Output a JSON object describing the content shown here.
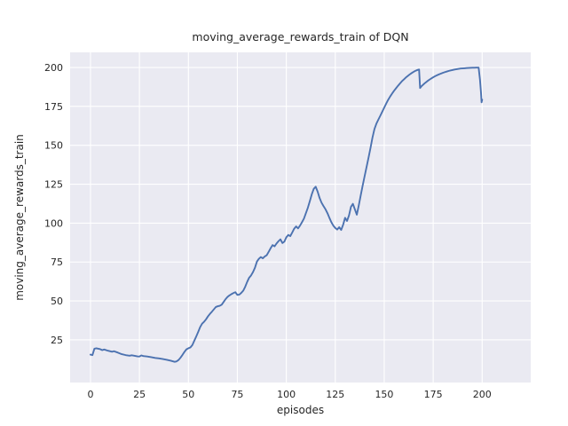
{
  "figure": {
    "background": "#ffffff"
  },
  "chart_data": {
    "type": "line",
    "title": "moving_average_rewards_train of DQN",
    "xlabel": "episodes",
    "ylabel": "moving_average_rewards_train",
    "legend": "none",
    "grid": true,
    "style": "seaborn-darkgrid",
    "axes_bg_color": "#EAEAF2",
    "grid_color": "#FFFFFF",
    "line_color": "#4C72B0",
    "text_color": "#262626",
    "x_ticks": [
      0,
      25,
      50,
      75,
      100,
      125,
      150,
      175,
      200
    ],
    "y_ticks": [
      25,
      50,
      75,
      100,
      125,
      150,
      175,
      200
    ],
    "xlim": [
      -10.4,
      224.8
    ],
    "ylim": [
      -2.4,
      209.7
    ],
    "series": [
      {
        "name": "moving_average_rewards_train",
        "points": [
          [
            0,
            15.5
          ],
          [
            1,
            15.2
          ],
          [
            2,
            19.3
          ],
          [
            3,
            19.6
          ],
          [
            5,
            19.0
          ],
          [
            6,
            18.4
          ],
          [
            7,
            18.8
          ],
          [
            9,
            18.0
          ],
          [
            11,
            17.4
          ],
          [
            12,
            17.7
          ],
          [
            14,
            16.8
          ],
          [
            16,
            15.8
          ],
          [
            18,
            15.2
          ],
          [
            20,
            14.8
          ],
          [
            21,
            15.1
          ],
          [
            22,
            14.9
          ],
          [
            24,
            14.4
          ],
          [
            25,
            14.3
          ],
          [
            26,
            15.0
          ],
          [
            27,
            14.6
          ],
          [
            29,
            14.3
          ],
          [
            31,
            13.9
          ],
          [
            33,
            13.4
          ],
          [
            35,
            13.1
          ],
          [
            37,
            12.7
          ],
          [
            39,
            12.2
          ],
          [
            41,
            11.6
          ],
          [
            43,
            10.9
          ],
          [
            44,
            11.2
          ],
          [
            45,
            12.1
          ],
          [
            46,
            13.6
          ],
          [
            47,
            15.4
          ],
          [
            48,
            17.3
          ],
          [
            49,
            18.9
          ],
          [
            50,
            19.6
          ],
          [
            51,
            20.1
          ],
          [
            52,
            21.6
          ],
          [
            53,
            24.4
          ],
          [
            54,
            27.2
          ],
          [
            55,
            30.1
          ],
          [
            56,
            33.2
          ],
          [
            57,
            35.4
          ],
          [
            58,
            36.6
          ],
          [
            59,
            38.2
          ],
          [
            60,
            40.1
          ],
          [
            61,
            41.7
          ],
          [
            62,
            43.1
          ],
          [
            63,
            44.6
          ],
          [
            64,
            46.1
          ],
          [
            65,
            46.6
          ],
          [
            66,
            46.9
          ],
          [
            67,
            47.6
          ],
          [
            68,
            49.4
          ],
          [
            69,
            51.2
          ],
          [
            70,
            52.6
          ],
          [
            71,
            53.6
          ],
          [
            72,
            54.4
          ],
          [
            73,
            55.1
          ],
          [
            74,
            55.6
          ],
          [
            75,
            53.9
          ],
          [
            76,
            54.1
          ],
          [
            77,
            55.2
          ],
          [
            78,
            56.6
          ],
          [
            79,
            59.1
          ],
          [
            80,
            62.2
          ],
          [
            81,
            64.9
          ],
          [
            82,
            66.4
          ],
          [
            83,
            68.6
          ],
          [
            84,
            71.4
          ],
          [
            85,
            75.3
          ],
          [
            86,
            77.1
          ],
          [
            87,
            78.2
          ],
          [
            88,
            77.4
          ],
          [
            89,
            78.6
          ],
          [
            90,
            79.4
          ],
          [
            91,
            81.6
          ],
          [
            92,
            83.9
          ],
          [
            93,
            85.9
          ],
          [
            94,
            85.1
          ],
          [
            95,
            86.9
          ],
          [
            96,
            88.4
          ],
          [
            97,
            89.6
          ],
          [
            98,
            87.2
          ],
          [
            99,
            88.1
          ],
          [
            100,
            90.9
          ],
          [
            101,
            92.4
          ],
          [
            102,
            91.6
          ],
          [
            103,
            93.9
          ],
          [
            104,
            96.4
          ],
          [
            105,
            97.9
          ],
          [
            106,
            96.6
          ],
          [
            107,
            98.4
          ],
          [
            108,
            100.6
          ],
          [
            109,
            102.9
          ],
          [
            110,
            106.4
          ],
          [
            111,
            109.9
          ],
          [
            112,
            114.1
          ],
          [
            113,
            118.5
          ],
          [
            114,
            122.0
          ],
          [
            115,
            123.4
          ],
          [
            116,
            120.2
          ],
          [
            117,
            116.1
          ],
          [
            118,
            113.1
          ],
          [
            119,
            110.9
          ],
          [
            120,
            108.9
          ],
          [
            121,
            106.4
          ],
          [
            122,
            103.4
          ],
          [
            123,
            100.6
          ],
          [
            124,
            98.4
          ],
          [
            125,
            96.9
          ],
          [
            126,
            95.9
          ],
          [
            127,
            97.4
          ],
          [
            128,
            95.6
          ],
          [
            129,
            98.9
          ],
          [
            130,
            103.4
          ],
          [
            131,
            101.4
          ],
          [
            132,
            104.9
          ],
          [
            133,
            110.4
          ],
          [
            134,
            112.4
          ],
          [
            135,
            108.9
          ],
          [
            136,
            105.4
          ],
          [
            137,
            111.4
          ],
          [
            138,
            117.9
          ],
          [
            139,
            124.2
          ],
          [
            140,
            130.3
          ],
          [
            141,
            136.2
          ],
          [
            142,
            142.2
          ],
          [
            143,
            148.4
          ],
          [
            144,
            155.0
          ],
          [
            145,
            160.4
          ],
          [
            146,
            163.9
          ],
          [
            147,
            166.5
          ],
          [
            148,
            169.0
          ],
          [
            149,
            171.6
          ],
          [
            150,
            174.2
          ],
          [
            151,
            176.8
          ],
          [
            152,
            179.2
          ],
          [
            153,
            181.3
          ],
          [
            154,
            183.2
          ],
          [
            155,
            185.0
          ],
          [
            156,
            186.6
          ],
          [
            157,
            188.2
          ],
          [
            158,
            189.7
          ],
          [
            159,
            191.1
          ],
          [
            160,
            192.3
          ],
          [
            161,
            193.5
          ],
          [
            162,
            194.5
          ],
          [
            163,
            195.5
          ],
          [
            164,
            196.4
          ],
          [
            165,
            197.2
          ],
          [
            166,
            197.9
          ],
          [
            167,
            198.4
          ],
          [
            167.8,
            198.7
          ],
          [
            168.3,
            186.8
          ],
          [
            169,
            187.9
          ],
          [
            170,
            189.1
          ],
          [
            171,
            190.2
          ],
          [
            172,
            191.2
          ],
          [
            173,
            192.1
          ],
          [
            174,
            192.9
          ],
          [
            175,
            193.7
          ],
          [
            176,
            194.4
          ],
          [
            177,
            195.0
          ],
          [
            178,
            195.6
          ],
          [
            179,
            196.1
          ],
          [
            180,
            196.6
          ],
          [
            181,
            197.0
          ],
          [
            182,
            197.4
          ],
          [
            183,
            197.8
          ],
          [
            184,
            198.1
          ],
          [
            185,
            198.4
          ],
          [
            186,
            198.7
          ],
          [
            187,
            198.9
          ],
          [
            188,
            199.1
          ],
          [
            189,
            199.3
          ],
          [
            190,
            199.4
          ],
          [
            191,
            199.5
          ],
          [
            192,
            199.6
          ],
          [
            193,
            199.7
          ],
          [
            194,
            199.75
          ],
          [
            195,
            199.8
          ],
          [
            196,
            199.85
          ],
          [
            197,
            199.9
          ],
          [
            198.2,
            199.9
          ],
          [
            198.9,
            192.0
          ],
          [
            199.4,
            184.0
          ],
          [
            199.7,
            177.6
          ],
          [
            200,
            179.3
          ]
        ]
      }
    ]
  }
}
